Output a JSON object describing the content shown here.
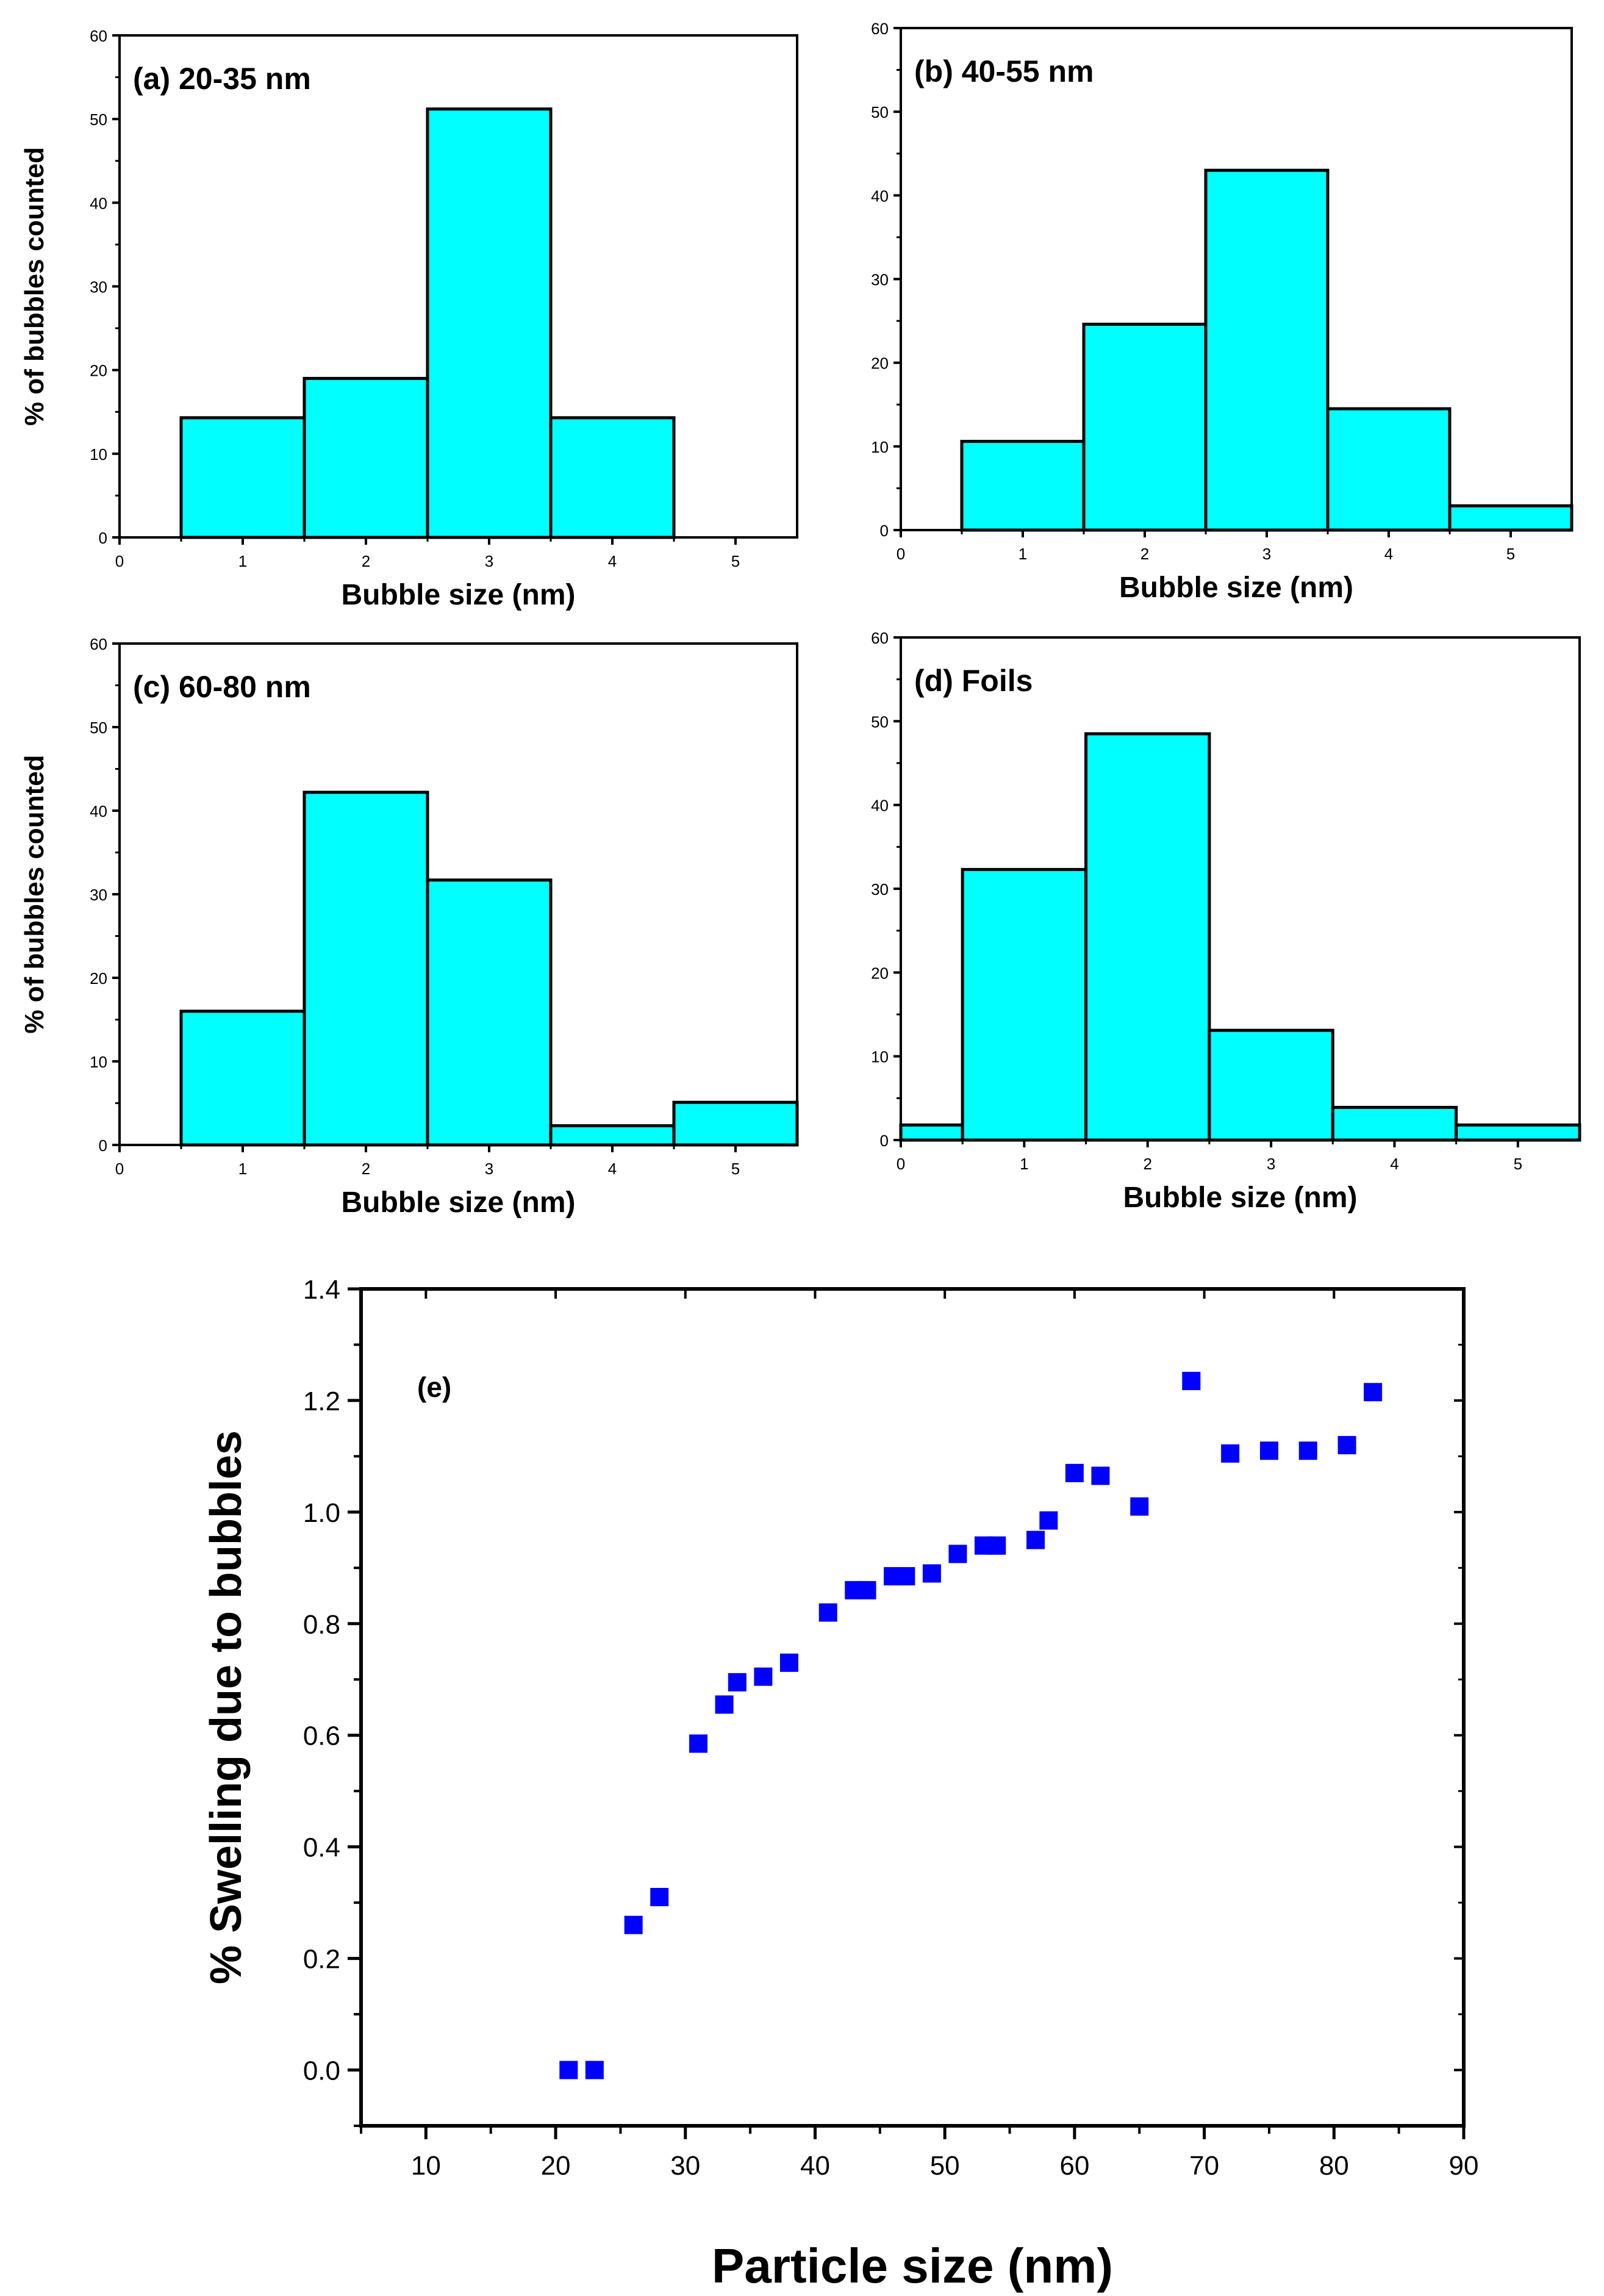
{
  "colors": {
    "bar_fill": "#00ffff",
    "bar_stroke": "#000000",
    "marker": "#0000ff",
    "axis": "#000000"
  },
  "chart_data": [
    {
      "id": "a",
      "type": "bar",
      "title": "(a) 20-35 nm",
      "xlabel": "Bubble size (nm)",
      "ylabel": "% of bubbles counted",
      "xlim": [
        0,
        5.5
      ],
      "ylim": [
        0,
        60
      ],
      "xticks": [
        "0",
        "1",
        "2",
        "3",
        "4",
        "5"
      ],
      "yticks": [
        "0",
        "10",
        "20",
        "30",
        "40",
        "50",
        "60"
      ],
      "categories": [
        1,
        2,
        3,
        4
      ],
      "values": [
        14.3,
        19.0,
        51.2,
        14.3
      ]
    },
    {
      "id": "b",
      "type": "bar",
      "title": "(b) 40-55 nm",
      "xlabel": "Bubble size (nm)",
      "ylabel": "",
      "xlim": [
        0,
        5.5
      ],
      "ylim": [
        0,
        60
      ],
      "xticks": [
        "0",
        "1",
        "2",
        "3",
        "4",
        "5"
      ],
      "yticks": [
        "0",
        "10",
        "20",
        "30",
        "40",
        "50",
        "60"
      ],
      "categories": [
        0,
        1,
        2,
        3,
        4,
        5
      ],
      "values": [
        0,
        10.6,
        24.6,
        43.0,
        14.5,
        2.9
      ]
    },
    {
      "id": "c",
      "type": "bar",
      "title": "(c) 60-80 nm",
      "xlabel": "Bubble size (nm)",
      "ylabel": "% of bubbles counted",
      "xlim": [
        0,
        5.5
      ],
      "ylim": [
        0,
        60
      ],
      "xticks": [
        "0",
        "1",
        "2",
        "3",
        "4",
        "5"
      ],
      "yticks": [
        "0",
        "10",
        "20",
        "30",
        "40",
        "50",
        "60"
      ],
      "categories": [
        1,
        2,
        3,
        4,
        5
      ],
      "values": [
        16.0,
        42.2,
        31.7,
        2.3,
        5.1
      ]
    },
    {
      "id": "d",
      "type": "bar",
      "title": "(d) Foils",
      "xlabel": "Bubble size (nm)",
      "ylabel": "",
      "xlim": [
        0,
        5.5
      ],
      "ylim": [
        0,
        60
      ],
      "xticks": [
        "0",
        "1",
        "2",
        "3",
        "4",
        "5"
      ],
      "yticks": [
        "0",
        "10",
        "20",
        "30",
        "40",
        "50",
        "60"
      ],
      "categories": [
        0,
        1,
        2,
        3,
        4,
        5
      ],
      "values": [
        1.8,
        32.3,
        48.5,
        13.1,
        3.9,
        1.8
      ]
    },
    {
      "id": "e",
      "type": "scatter",
      "title": "(e)",
      "xlabel": "Particle size (nm)",
      "ylabel": "% Swelling due to bubbles",
      "xlim": [
        5,
        90
      ],
      "ylim": [
        -0.1,
        1.4
      ],
      "xticks": [
        "10",
        "20",
        "30",
        "40",
        "50",
        "60",
        "70",
        "80",
        "90"
      ],
      "yticks": [
        "0.0",
        "0.2",
        "0.4",
        "0.6",
        "0.8",
        "1.0",
        "1.2",
        "1.4"
      ],
      "x": [
        21,
        23,
        26,
        28,
        31,
        33,
        34,
        36,
        38,
        41,
        43,
        44,
        46,
        47,
        49,
        51,
        53,
        54,
        57,
        58,
        60,
        62,
        65,
        69,
        72,
        75,
        78,
        81,
        83
      ],
      "y": [
        0.0,
        0.0,
        0.26,
        0.31,
        0.585,
        0.655,
        0.695,
        0.705,
        0.73,
        0.82,
        0.86,
        0.86,
        0.885,
        0.885,
        0.89,
        0.925,
        0.94,
        0.94,
        0.95,
        0.985,
        1.07,
        1.065,
        1.01,
        1.235,
        1.105,
        1.11,
        1.11,
        1.12,
        1.215
      ]
    }
  ]
}
